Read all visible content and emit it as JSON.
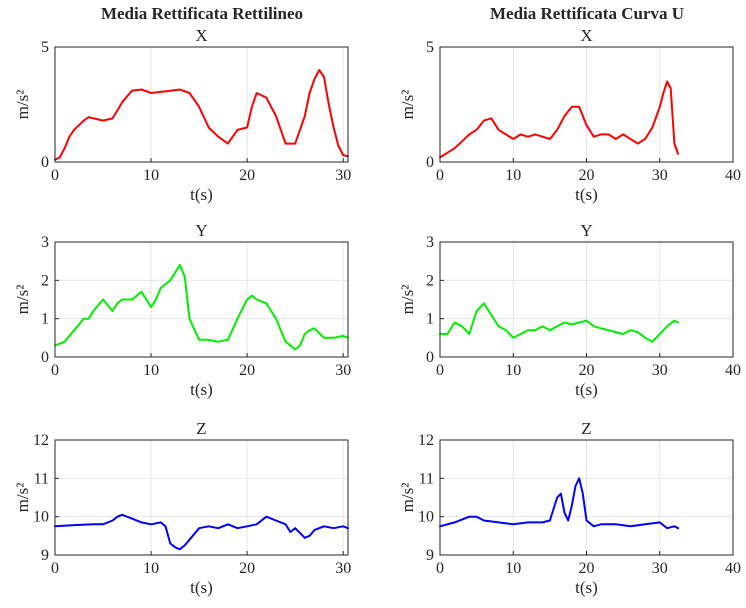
{
  "column_titles": [
    "Media Rettificata Rettilineo",
    "Media Rettificata Curva U"
  ],
  "chart_data": [
    {
      "type": "line",
      "column": 0,
      "row": 0,
      "title": "X",
      "xlabel": "t(s)",
      "ylabel": "m/s²",
      "xlim": [
        0,
        30.5
      ],
      "ylim": [
        0,
        5
      ],
      "xticks": [
        0,
        10,
        20,
        30
      ],
      "yticks": [
        0,
        5
      ],
      "grid": true,
      "color": "#ff0000",
      "series": [
        {
          "x": [
            0,
            0.5,
            1,
            1.5,
            2,
            2.5,
            3,
            3.5,
            4,
            5,
            6,
            7,
            8,
            9,
            10,
            11,
            12,
            13,
            14,
            15,
            16,
            17,
            18,
            19,
            20,
            20.5,
            21,
            22,
            23,
            24,
            25,
            26,
            26.5,
            27,
            27.5,
            28,
            28.5,
            29,
            29.5,
            30,
            30.5
          ],
          "y": [
            0.1,
            0.2,
            0.6,
            1.1,
            1.4,
            1.6,
            1.8,
            1.95,
            1.9,
            1.8,
            1.9,
            2.6,
            3.1,
            3.15,
            3.0,
            3.05,
            3.1,
            3.15,
            3.0,
            2.4,
            1.5,
            1.1,
            0.8,
            1.4,
            1.5,
            2.4,
            3.0,
            2.8,
            2.0,
            0.8,
            0.8,
            2.0,
            3.0,
            3.6,
            4.0,
            3.7,
            2.5,
            1.5,
            0.7,
            0.3,
            0.25
          ]
        }
      ]
    },
    {
      "type": "line",
      "column": 1,
      "row": 0,
      "title": "X",
      "xlabel": "t(s)",
      "ylabel": "m/s²",
      "xlim": [
        0,
        40
      ],
      "ylim": [
        0,
        5
      ],
      "xticks": [
        0,
        10,
        20,
        30,
        40
      ],
      "yticks": [
        0,
        5
      ],
      "grid": true,
      "color": "#ff0000",
      "series": [
        {
          "x": [
            0,
            1,
            2,
            3,
            4,
            5,
            6,
            7,
            8,
            9,
            10,
            11,
            12,
            13,
            14,
            15,
            16,
            17,
            18,
            19,
            20,
            21,
            22,
            23,
            24,
            25,
            26,
            27,
            28,
            29,
            30,
            30.5,
            31,
            31.5,
            32,
            32.5
          ],
          "y": [
            0.2,
            0.4,
            0.6,
            0.9,
            1.2,
            1.4,
            1.8,
            1.9,
            1.4,
            1.2,
            1.0,
            1.2,
            1.1,
            1.2,
            1.1,
            1.0,
            1.4,
            2.0,
            2.4,
            2.4,
            1.6,
            1.1,
            1.2,
            1.2,
            1.0,
            1.2,
            1.0,
            0.8,
            1.0,
            1.5,
            2.4,
            3.0,
            3.5,
            3.2,
            0.8,
            0.35
          ]
        }
      ]
    },
    {
      "type": "line",
      "column": 0,
      "row": 1,
      "title": "Y",
      "xlabel": "t(s)",
      "ylabel": "m/s²",
      "xlim": [
        0,
        30.5
      ],
      "ylim": [
        0,
        3
      ],
      "xticks": [
        0,
        10,
        20,
        30
      ],
      "yticks": [
        0,
        1,
        2,
        3
      ],
      "grid": true,
      "color": "#00ee00",
      "series": [
        {
          "x": [
            0,
            1,
            2,
            3,
            3.5,
            4,
            5,
            6,
            6.5,
            7,
            8,
            9,
            10,
            10.5,
            11,
            12,
            12.5,
            13,
            13.5,
            14,
            15,
            16,
            17,
            18,
            19,
            20,
            20.5,
            21,
            22,
            23,
            24,
            25,
            25.5,
            26,
            26.5,
            27,
            28,
            29,
            30,
            30.5
          ],
          "y": [
            0.3,
            0.4,
            0.7,
            1.0,
            1.0,
            1.2,
            1.5,
            1.2,
            1.4,
            1.5,
            1.5,
            1.7,
            1.3,
            1.5,
            1.8,
            2.0,
            2.2,
            2.4,
            2.1,
            1.0,
            0.45,
            0.45,
            0.4,
            0.45,
            1.0,
            1.5,
            1.6,
            1.5,
            1.4,
            1.0,
            0.4,
            0.2,
            0.3,
            0.6,
            0.7,
            0.75,
            0.5,
            0.5,
            0.55,
            0.5
          ]
        }
      ]
    },
    {
      "type": "line",
      "column": 1,
      "row": 1,
      "title": "Y",
      "xlabel": "t(s)",
      "ylabel": "m/s²",
      "xlim": [
        0,
        40
      ],
      "ylim": [
        0,
        3
      ],
      "xticks": [
        0,
        10,
        20,
        30,
        40
      ],
      "yticks": [
        0,
        1,
        2,
        3
      ],
      "grid": true,
      "color": "#00ee00",
      "series": [
        {
          "x": [
            0,
            1,
            2,
            3,
            4,
            5,
            6,
            7,
            8,
            9,
            10,
            11,
            12,
            13,
            14,
            15,
            16,
            17,
            18,
            19,
            20,
            21,
            22,
            23,
            24,
            25,
            26,
            27,
            28,
            29,
            30,
            31,
            32,
            32.5
          ],
          "y": [
            0.6,
            0.6,
            0.9,
            0.8,
            0.6,
            1.2,
            1.4,
            1.1,
            0.8,
            0.7,
            0.5,
            0.6,
            0.7,
            0.7,
            0.8,
            0.7,
            0.8,
            0.9,
            0.85,
            0.9,
            0.95,
            0.8,
            0.75,
            0.7,
            0.65,
            0.6,
            0.7,
            0.65,
            0.5,
            0.4,
            0.6,
            0.8,
            0.95,
            0.9
          ]
        }
      ]
    },
    {
      "type": "line",
      "column": 0,
      "row": 2,
      "title": "Z",
      "xlabel": "t(s)",
      "ylabel": "m/s²",
      "xlim": [
        0,
        30.5
      ],
      "ylim": [
        9,
        12
      ],
      "xticks": [
        0,
        10,
        20,
        30
      ],
      "yticks": [
        9,
        10,
        11,
        12
      ],
      "grid": true,
      "color": "#0000ff",
      "series": [
        {
          "x": [
            0,
            2,
            4,
            5,
            6,
            6.5,
            7,
            8,
            9,
            10,
            11,
            11.5,
            12,
            12.5,
            13,
            13.5,
            14,
            15,
            16,
            17,
            18,
            19,
            20,
            21,
            22,
            23,
            24,
            24.5,
            25,
            26,
            26.5,
            27,
            28,
            29,
            30,
            30.5
          ],
          "y": [
            9.75,
            9.78,
            9.8,
            9.8,
            9.9,
            10.0,
            10.05,
            9.95,
            9.85,
            9.8,
            9.85,
            9.75,
            9.3,
            9.2,
            9.15,
            9.25,
            9.4,
            9.7,
            9.75,
            9.7,
            9.8,
            9.7,
            9.75,
            9.8,
            10.0,
            9.9,
            9.8,
            9.6,
            9.7,
            9.45,
            9.5,
            9.65,
            9.75,
            9.7,
            9.75,
            9.7
          ]
        }
      ]
    },
    {
      "type": "line",
      "column": 1,
      "row": 2,
      "title": "Z",
      "xlabel": "t(s)",
      "ylabel": "m/s²",
      "xlim": [
        0,
        40
      ],
      "ylim": [
        9,
        12
      ],
      "xticks": [
        0,
        10,
        20,
        30,
        40
      ],
      "yticks": [
        9,
        10,
        11,
        12
      ],
      "grid": true,
      "color": "#0000ff",
      "series": [
        {
          "x": [
            0,
            2,
            4,
            5,
            6,
            8,
            10,
            12,
            14,
            15,
            15.5,
            16,
            16.5,
            17,
            17.5,
            18,
            18.5,
            19,
            19.5,
            20,
            21,
            22,
            24,
            26,
            28,
            30,
            31,
            32,
            32.5
          ],
          "y": [
            9.75,
            9.85,
            10.0,
            10.0,
            9.9,
            9.85,
            9.8,
            9.85,
            9.85,
            9.9,
            10.2,
            10.5,
            10.6,
            10.1,
            9.9,
            10.3,
            10.8,
            11.0,
            10.6,
            9.9,
            9.75,
            9.8,
            9.8,
            9.75,
            9.8,
            9.85,
            9.7,
            9.75,
            9.7
          ]
        }
      ]
    }
  ]
}
